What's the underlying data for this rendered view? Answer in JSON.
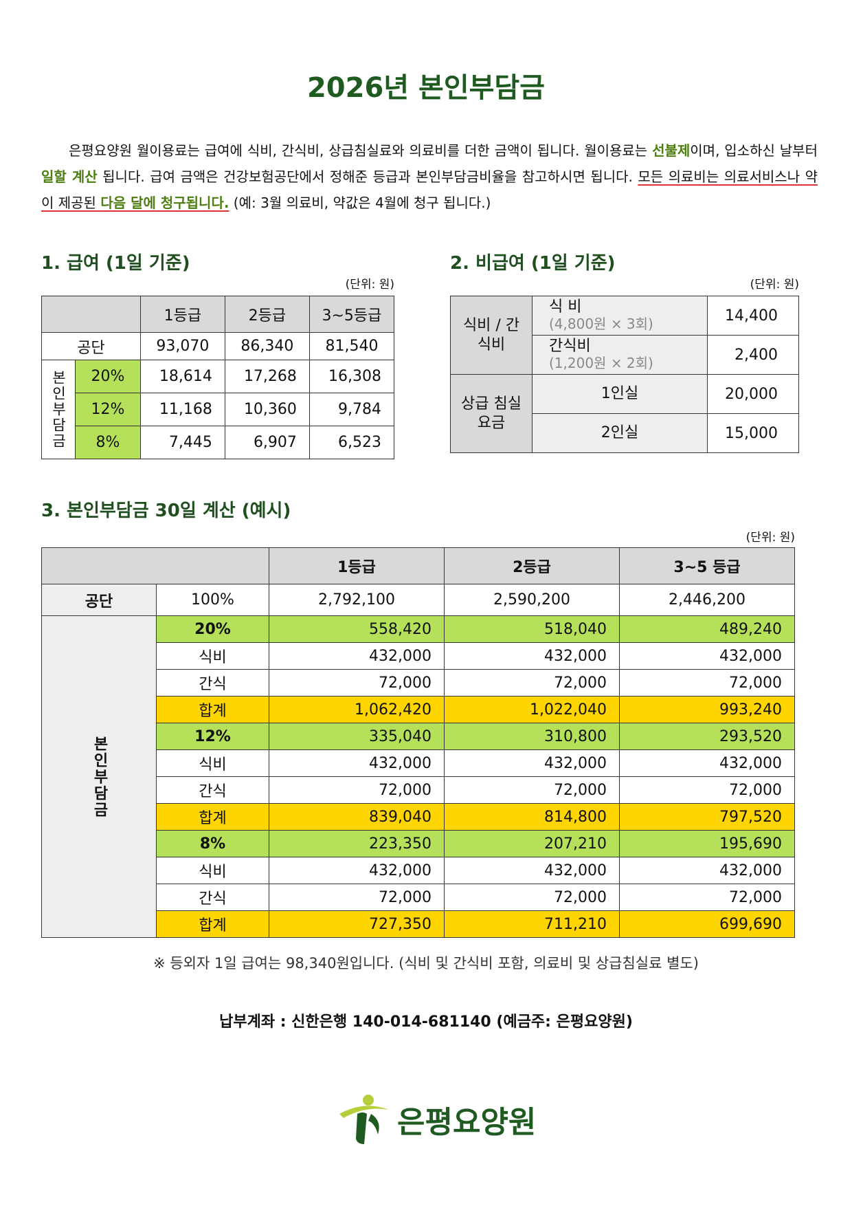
{
  "title": "2026년 본인부담금",
  "intro": [
    "은평요양원 월이용료는 급여에 식비, 간식비, 상급침실료와 의료비를 더한 금액이 됩니다. 월이용료는 ",
    "선불제",
    "이며, 입소하신 날부터 ",
    "일할 계산",
    " 됩니다. 급여 금액은 건강보험공단에서 정해준 등급과 본인부담금비율을 참고하시면 됩니다. ",
    "모든 의료비는 의료서비스나 약이 제공된 ",
    "다음 달에 청구됩니다.",
    " (예: 3월 의료비, 약값은 4월에 청구 됩니다.)"
  ],
  "section1": {
    "heading": "1. 급여 (1일 기준)",
    "unit": "(단위: 원)",
    "header": [
      "1등급",
      "2등급",
      "3~5등급"
    ],
    "gongdan": {
      "label": "공단",
      "values": [
        "93,070",
        "86,340",
        "81,540"
      ]
    },
    "side_label": "본인부담금",
    "rows": [
      {
        "rate": "20%",
        "values": [
          "18,614",
          "17,268",
          "16,308"
        ]
      },
      {
        "rate": "12%",
        "values": [
          "11,168",
          "10,360",
          "9,784"
        ]
      },
      {
        "rate": "8%",
        "values": [
          "7,445",
          "6,907",
          "6,523"
        ]
      }
    ]
  },
  "section2": {
    "heading": "2. 비급여 (1일 기준)",
    "unit": "(단위: 원)",
    "groups": [
      {
        "label": "식비 / 간식비",
        "items": [
          {
            "name": "식 비",
            "note": "(4,800원 × 3회)",
            "amount": "14,400"
          },
          {
            "name": "간식비",
            "note": "(1,200원 × 2회)",
            "amount": "2,400"
          }
        ]
      },
      {
        "label": "상급 침실 요금",
        "items": [
          {
            "name": "1인실",
            "amount": "20,000"
          },
          {
            "name": "2인실",
            "amount": "15,000"
          }
        ]
      }
    ]
  },
  "section3": {
    "heading": "3. 본인부담금 30일 계산 (예시)",
    "unit": "(단위: 원)",
    "header": [
      "1등급",
      "2등급",
      "3~5 등급"
    ],
    "gongdan": {
      "label": "공단",
      "rate": "100%",
      "values": [
        "2,792,100",
        "2,590,200",
        "2,446,200"
      ]
    },
    "side_label": "본인부담금",
    "blocks": [
      {
        "rate": "20%",
        "values": [
          "558,420",
          "518,040",
          "489,240"
        ],
        "rows": [
          {
            "label": "식비",
            "values": [
              "432,000",
              "432,000",
              "432,000"
            ]
          },
          {
            "label": "간식",
            "values": [
              "72,000",
              "72,000",
              "72,000"
            ]
          },
          {
            "label": "합계",
            "values": [
              "1,062,420",
              "1,022,040",
              "993,240"
            ]
          }
        ]
      },
      {
        "rate": "12%",
        "values": [
          "335,040",
          "310,800",
          "293,520"
        ],
        "rows": [
          {
            "label": "식비",
            "values": [
              "432,000",
              "432,000",
              "432,000"
            ]
          },
          {
            "label": "간식",
            "values": [
              "72,000",
              "72,000",
              "72,000"
            ]
          },
          {
            "label": "합계",
            "values": [
              "839,040",
              "814,800",
              "797,520"
            ]
          }
        ]
      },
      {
        "rate": "8%",
        "values": [
          "223,350",
          "207,210",
          "195,690"
        ],
        "rows": [
          {
            "label": "식비",
            "values": [
              "432,000",
              "432,000",
              "432,000"
            ]
          },
          {
            "label": "간식",
            "values": [
              "72,000",
              "72,000",
              "72,000"
            ]
          },
          {
            "label": "합계",
            "values": [
              "727,350",
              "711,210",
              "699,690"
            ]
          }
        ]
      }
    ]
  },
  "footnote": "※ 등외자 1일 급여는 98,340원입니다. (식비 및 간식비 포함, 의료비 및 상급침실료 별도)",
  "account": "납부계좌 : 신한은행 140-014-681140 (예금주: 은평요양원)",
  "logo": "은평요양원"
}
